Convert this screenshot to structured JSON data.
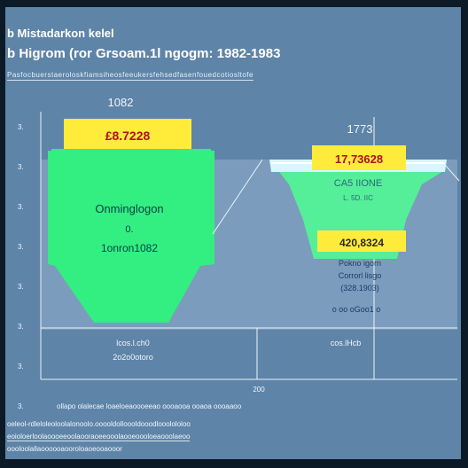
{
  "header": {
    "line1": "b Mistadarkon kelel",
    "line2": "b Higrom (ror Grsoam.1l ngogm: 1982-1983",
    "line3": "Pasfocbuerstaeroloskfiamsiheosfeeukersfehsedfasenfouedcotiosltofe"
  },
  "chart_data": {
    "type": "funnel",
    "title": "b Higrom (ror Grsoam.1l ngogm: 1982-1983",
    "y_ticks": [
      "3.",
      "3.",
      "3.",
      "3.",
      "3.",
      "3.",
      "3.",
      "3."
    ],
    "x_label": "200",
    "series": [
      {
        "name": "1082",
        "total": "£8.7228",
        "inner_label": "Onminglogon",
        "inner_sub1": "0.",
        "inner_sub2": "1onron1082",
        "below_1": "lcos.l.ch0",
        "below_2": "2o2o0otoro",
        "color": "#33ee80"
      },
      {
        "name": "1773",
        "total": "17,73628",
        "mid_label": "CA5 IIONE",
        "mid_sub": "L. 5D. IIC",
        "bottom_value": "420,8324",
        "notes": [
          "Pokno igorn",
          "Corrorl lisgo",
          "(328.1903)"
        ],
        "note_tail": "o  oo  oGoo1  o",
        "below_1": "cos.lHcb",
        "color": "#55ee99"
      }
    ]
  },
  "footer": {
    "f1": "ollapo olalecae  loaeloeaoooeeao  oooaooa  ooaoa  oooaaoo",
    "f2": "oeleol-rdleloleoloolalonoolo.ooooldolloooldooodlooolololoo",
    "f3": "eoioloerloolaoooeeoolaooraoeeooolaooeoooloeaooolaeoo",
    "f4": "oooloolallaoooooaooroloaoeooaooor"
  }
}
